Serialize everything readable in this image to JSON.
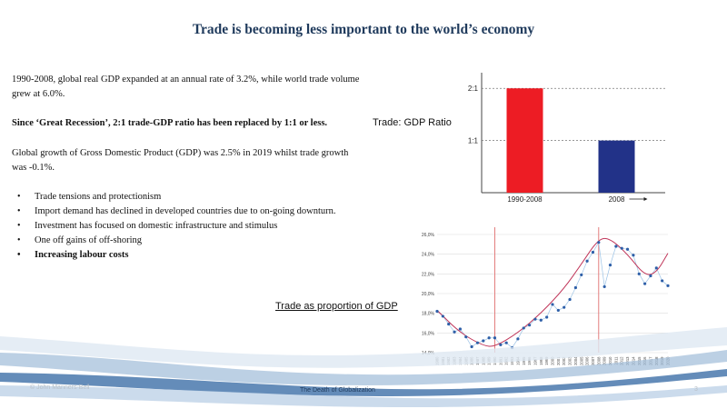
{
  "slide": {
    "title": "Trade is becoming less important to the world’s economy",
    "paragraph1": "1990-2008, global real GDP expanded at an annual rate of 3.2%, while world trade volume grew at 6.0%.",
    "paragraph2": "Since ‘Great Recession’, 2:1 trade-GDP ratio has been replaced by 1:1 or less.",
    "paragraph3": "Global growth of Gross Domestic Product (GDP) was 2.5% in 2019 whilst trade growth was -0.1%.",
    "bullets": [
      "Trade tensions and protectionism",
      "Import demand has declined in developed countries due to on-going downturn.",
      "Investment has focused on domestic  infrastructure and stimulus",
      "One off gains of off-shoring",
      "Increasing labour costs"
    ],
    "ratio_label": "Trade: GDP Ratio",
    "proportion_label": "Trade as proportion of GDP",
    "footer_left": "© John Manners-Bell",
    "footer_center": "The Death of Globalization",
    "footer_right": "3"
  },
  "colors": {
    "title": "#1f3a5c",
    "bar1": "#ed1c24",
    "bar2": "#223288",
    "scatter": "#2e5fa8",
    "trend": "#c0365a",
    "vline": "#e07070"
  },
  "chart_data": [
    {
      "type": "bar",
      "categories": [
        "1990-2008",
        "2008"
      ],
      "values": [
        2,
        1
      ],
      "yticks": [
        "1:1",
        "2:1"
      ],
      "ylim": [
        0,
        2.3
      ],
      "grid": "dashed horizontal at ticks"
    },
    {
      "type": "scatter",
      "x": [
        1980,
        1981,
        1982,
        1983,
        1984,
        1985,
        1986,
        1987,
        1988,
        1989,
        1990,
        1991,
        1992,
        1993,
        1994,
        1995,
        1996,
        1997,
        1998,
        1999,
        2000,
        2001,
        2002,
        2003,
        2004,
        2005,
        2006,
        2007,
        2008,
        2009,
        2010,
        2011,
        2012,
        2013,
        2014,
        2015,
        2016,
        2017,
        2018,
        2019,
        2020
      ],
      "values": [
        18.2,
        17.7,
        16.9,
        16.1,
        16.4,
        15.6,
        14.6,
        15.0,
        15.2,
        15.5,
        15.5,
        14.8,
        15.0,
        14.5,
        15.4,
        16.5,
        16.8,
        17.4,
        17.3,
        17.6,
        18.9,
        18.3,
        18.6,
        19.4,
        20.6,
        21.9,
        23.3,
        24.2,
        25.2,
        20.7,
        22.9,
        24.8,
        24.6,
        24.5,
        23.9,
        22.0,
        21.0,
        21.8,
        22.6,
        21.3,
        20.8
      ],
      "yticks": [
        "14,0%",
        "16,0%",
        "18,0%",
        "20,0%",
        "22,0%",
        "24,0%",
        "26,0%"
      ],
      "ylim": [
        14,
        26
      ],
      "vertical_markers": [
        1990,
        2008
      ],
      "trendline": "smooth curve"
    }
  ]
}
